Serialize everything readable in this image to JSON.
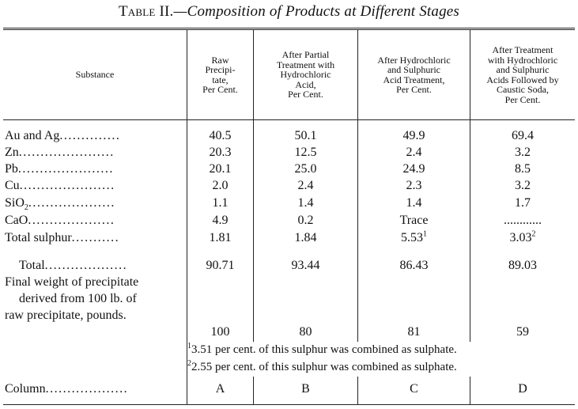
{
  "table": {
    "title_label": "Table II.",
    "title_text": "—Composition of Products at Different Stages",
    "headers": {
      "substance": "Substance",
      "col1": [
        "Raw",
        "Precipi-",
        "tate,",
        "Per Cent."
      ],
      "col2": [
        "After Partial",
        "Treatment with",
        "Hydrochloric",
        "Acid,",
        "Per Cent."
      ],
      "col3": [
        "After Hydrochloric",
        "and Sulphuric",
        "Acid Treatment,",
        "Per Cent."
      ],
      "col4": [
        "After Treatment",
        "with Hydrochloric",
        "and Sulphuric",
        "Acids Followed by",
        "Caustic Soda,",
        "Per Cent."
      ]
    },
    "rows": [
      {
        "label": "Au and Ag",
        "dots": "..............",
        "values": [
          "40.5",
          "50.1",
          "49.9",
          "69.4"
        ]
      },
      {
        "label": "Zn",
        "dots": "......................",
        "values": [
          "20.3",
          "12.5",
          "2.4",
          "3.2"
        ]
      },
      {
        "label": "Pb",
        "dots": "......................",
        "values": [
          "20.1",
          "25.0",
          "24.9",
          "8.5"
        ]
      },
      {
        "label": "Cu",
        "dots": "......................",
        "values": [
          "2.0",
          "2.4",
          "2.3",
          "3.2"
        ]
      },
      {
        "label_main": "SiO",
        "label_sub": "2",
        "dots": "....................",
        "values": [
          "1.1",
          "1.4",
          "1.4",
          "1.7"
        ]
      },
      {
        "label": "CaO",
        "dots": "....................",
        "values": [
          "4.9",
          "0.2",
          "Trace",
          "............"
        ]
      },
      {
        "label": "Total sulphur",
        "dots": "...........",
        "values": [
          "1.81",
          "1.84",
          "5.53",
          "3.03"
        ],
        "marks": [
          "",
          "",
          "1",
          "2"
        ]
      }
    ],
    "total": {
      "label": "Total",
      "dots": "...................",
      "values": [
        "90.71",
        "93.44",
        "86.43",
        "89.03"
      ]
    },
    "final_weight": {
      "lines": [
        "Final weight of precipitate",
        "derived from 100 lb. of",
        "raw precipitate, pounds."
      ],
      "values": [
        "100",
        "80",
        "81",
        "59"
      ]
    },
    "footnotes": [
      {
        "mark": "1",
        "text": "3.51 per cent. of this sulphur was combined as sulphate."
      },
      {
        "mark": "2",
        "text": "2.55 per cent. of this sulphur was combined as sulphate."
      }
    ],
    "column_row": {
      "label": "Column",
      "dots": "...................",
      "values": [
        "A",
        "B",
        "C",
        "D"
      ]
    }
  }
}
